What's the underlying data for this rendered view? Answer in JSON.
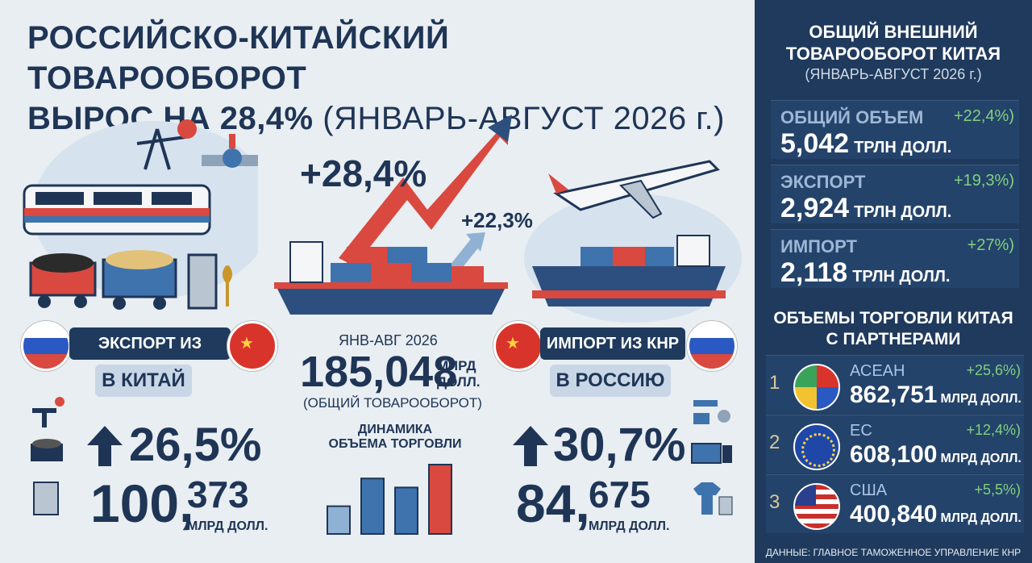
{
  "title": {
    "line1": "РОССИЙСКО-КИТАЙСКИЙ ТОВАРООБОРОТ",
    "line2a": "ВЫРОС НА 28,4%",
    "line2b": "(ЯНВАРЬ-АВГУСТ 2026 г.)"
  },
  "arrow_labels": {
    "main": "+28,4%",
    "secondary": "+22,3%"
  },
  "export": {
    "pill": "ЭКСПОРТ ИЗ РОССИИ",
    "sub": "В КИТАЙ",
    "pct": "26,5%",
    "value_big": "100,",
    "value_small": "373",
    "unit": "МЛРД ДОЛЛ."
  },
  "import": {
    "pill": "ИМПОРТ ИЗ КНР",
    "sub": "В РОССИЮ",
    "pct": "30,7%",
    "value_big": "84,",
    "value_small": "675",
    "unit": "МЛРД ДОЛЛ."
  },
  "center": {
    "period": "ЯНВ-АВГ 2026",
    "total": "185,048",
    "total_unit1": "МЛРД",
    "total_unit2": "ДОЛЛ.",
    "total_caption": "(ОБЩИЙ ТОВАРООБОРОТ)",
    "dyn_title1": "ДИНАМИКА",
    "dyn_title2": "ОБЪЕМА ТОРГОВЛИ",
    "bar_levels": [
      0.4,
      0.8,
      0.67,
      1.0
    ],
    "bar_colors": [
      "#8fb1d4",
      "#3f73ad",
      "#3f73ad",
      "#d9493f"
    ]
  },
  "panel": {
    "title1": "ОБЩИЙ ВНЕШНИЙ",
    "title2": "ТОВАРООБОРОТ КИТАЯ",
    "subtitle": "(ЯНВАРЬ-АВГУСТ 2026 г.)",
    "stats": [
      {
        "label": "ОБЩИЙ ОБЪЕМ",
        "pct": "+22,4%)",
        "value": "5,042",
        "unit": "ТРЛН ДОЛЛ."
      },
      {
        "label": "ЭКСПОРТ",
        "pct": "+19,3%)",
        "value": "2,924",
        "unit": "ТРЛН ДОЛЛ."
      },
      {
        "label": "ИМПОРТ",
        "pct": "+27%)",
        "value": "2,118",
        "unit": "ТРЛН ДОЛЛ."
      }
    ],
    "partners_title1": "ОБЪЕМЫ ТОРГОВЛИ КИТАЯ",
    "partners_title2": "С ПАРТНЕРАМИ",
    "partners": [
      {
        "rank": "1",
        "name": "АСЕАН",
        "pct": "+25,6%)",
        "value": "862,751",
        "unit": "МЛРД ДОЛЛ."
      },
      {
        "rank": "2",
        "name": "ЕС",
        "pct": "+12,4%)",
        "value": "608,100",
        "unit": "МЛРД ДОЛЛ."
      },
      {
        "rank": "3",
        "name": "США",
        "pct": "+5,5%)",
        "value": "400,840",
        "unit": "МЛРД ДОЛЛ."
      }
    ],
    "source": "ДАННЫЕ: ГЛАВНОЕ ТАМОЖЕННОЕ УПРАВЛЕНИЕ КНР"
  },
  "colors": {
    "navy": "#1f3a5c",
    "red": "#d9493f",
    "blue": "#3f73ad",
    "green": "#7fd17f"
  }
}
